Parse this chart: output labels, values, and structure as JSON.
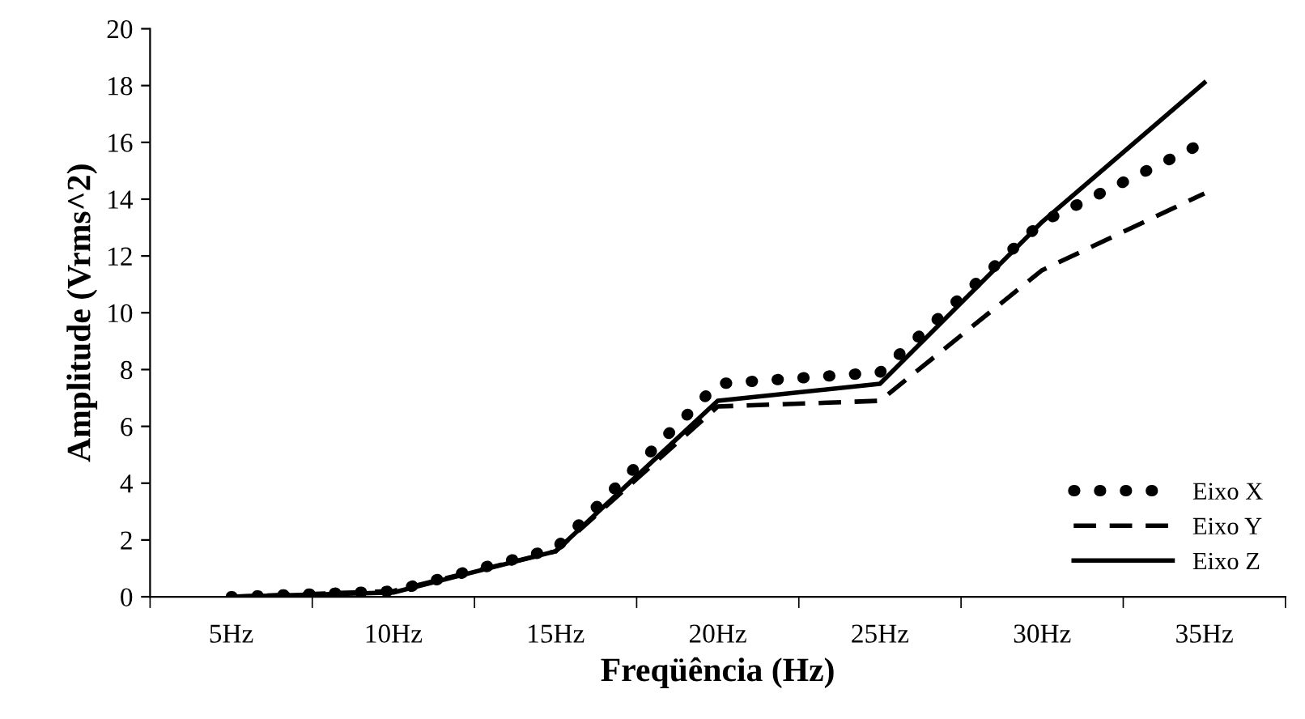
{
  "chart_data": {
    "type": "line",
    "xlabel": "Freqüência (Hz)",
    "ylabel": "Amplitude (Vrms^2)",
    "categories": [
      "5Hz",
      "10Hz",
      "15Hz",
      "20Hz",
      "25Hz",
      "30Hz",
      "35Hz"
    ],
    "series": [
      {
        "name": "Eixo X",
        "color": "#000000",
        "line_style": "dotted",
        "values": [
          0,
          0.2,
          1.7,
          7.5,
          7.9,
          13.2,
          16.0
        ]
      },
      {
        "name": "Eixo Y",
        "color": "#000000",
        "line_style": "dashed",
        "values": [
          0,
          0.2,
          1.6,
          6.7,
          6.9,
          11.5,
          14.2
        ]
      },
      {
        "name": "Eixo Z",
        "color": "#000000",
        "line_style": "solid",
        "values": [
          0,
          0.15,
          1.6,
          6.9,
          7.5,
          13.2,
          18.1
        ]
      }
    ],
    "ylim": [
      0,
      20
    ],
    "yticks": [
      0,
      2,
      4,
      6,
      8,
      10,
      12,
      14,
      16,
      18,
      20
    ],
    "grid": false,
    "legend": "bottom right",
    "marker": "none"
  }
}
